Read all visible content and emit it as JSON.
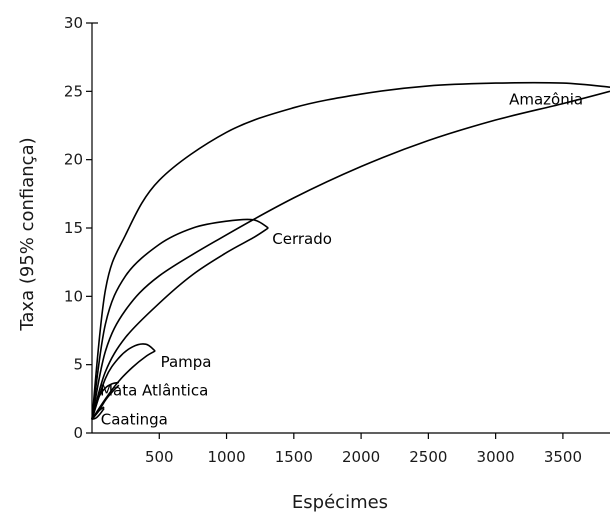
{
  "chart_data": {
    "type": "line",
    "xlabel": "Espécimes",
    "ylabel": "Taxa (95% confiança)",
    "xlim": [
      0,
      3850
    ],
    "ylim": [
      0,
      30
    ],
    "xticks": [
      500,
      1000,
      1500,
      2000,
      2500,
      3000,
      3500
    ],
    "yticks": [
      0,
      5,
      10,
      15,
      20,
      25,
      30
    ],
    "grid": false,
    "legend": "none",
    "series": [
      {
        "name": "Amazônia",
        "label_at": [
          3100,
          24.4
        ],
        "upper": [
          [
            0,
            1
          ],
          [
            100,
            10.5
          ],
          [
            250,
            14.5
          ],
          [
            500,
            18.5
          ],
          [
            1000,
            22
          ],
          [
            1500,
            23.8
          ],
          [
            2000,
            24.8
          ],
          [
            2500,
            25.4
          ],
          [
            3000,
            25.6
          ],
          [
            3500,
            25.6
          ],
          [
            3850,
            25.3
          ]
        ],
        "lower": [
          [
            0,
            1
          ],
          [
            100,
            6
          ],
          [
            250,
            9
          ],
          [
            500,
            11.5
          ],
          [
            1000,
            14.5
          ],
          [
            1500,
            17.2
          ],
          [
            2000,
            19.5
          ],
          [
            2500,
            21.4
          ],
          [
            3000,
            22.9
          ],
          [
            3500,
            24.1
          ],
          [
            3850,
            25.0
          ]
        ]
      },
      {
        "name": "Cerrado",
        "label_at": [
          1340,
          14.2
        ],
        "upper": [
          [
            0,
            1
          ],
          [
            100,
            8
          ],
          [
            250,
            11.5
          ],
          [
            500,
            13.8
          ],
          [
            750,
            15.0
          ],
          [
            1000,
            15.5
          ],
          [
            1200,
            15.6
          ],
          [
            1310,
            15.0
          ]
        ],
        "lower": [
          [
            0,
            1
          ],
          [
            100,
            4.5
          ],
          [
            250,
            7
          ],
          [
            500,
            9.5
          ],
          [
            750,
            11.6
          ],
          [
            1000,
            13.2
          ],
          [
            1200,
            14.3
          ],
          [
            1310,
            15.0
          ]
        ]
      },
      {
        "name": "Pampa",
        "label_at": [
          510,
          5.2
        ],
        "upper": [
          [
            0,
            1
          ],
          [
            100,
            4.0
          ],
          [
            200,
            5.5
          ],
          [
            300,
            6.3
          ],
          [
            400,
            6.5
          ],
          [
            470,
            6.0
          ]
        ],
        "lower": [
          [
            0,
            1
          ],
          [
            100,
            2.5
          ],
          [
            200,
            3.8
          ],
          [
            300,
            4.8
          ],
          [
            400,
            5.6
          ],
          [
            470,
            6.0
          ]
        ]
      },
      {
        "name": "Mata Atlântica",
        "label_at": [
          60,
          3.1
        ],
        "upper": [
          [
            0,
            1
          ],
          [
            50,
            2.6
          ],
          [
            100,
            3.3
          ],
          [
            150,
            3.6
          ],
          [
            200,
            3.7
          ]
        ],
        "lower": [
          [
            0,
            1
          ],
          [
            50,
            1.6
          ],
          [
            100,
            2.4
          ],
          [
            150,
            3.0
          ],
          [
            200,
            3.5
          ]
        ]
      },
      {
        "name": "Caatinga",
        "label_at": [
          65,
          1.0
        ],
        "upper": [
          [
            0,
            1
          ],
          [
            30,
            1.4
          ],
          [
            60,
            1.7
          ],
          [
            90,
            1.9
          ]
        ],
        "lower": [
          [
            0,
            1
          ],
          [
            30,
            1.1
          ],
          [
            60,
            1.4
          ],
          [
            90,
            1.8
          ]
        ]
      }
    ]
  }
}
